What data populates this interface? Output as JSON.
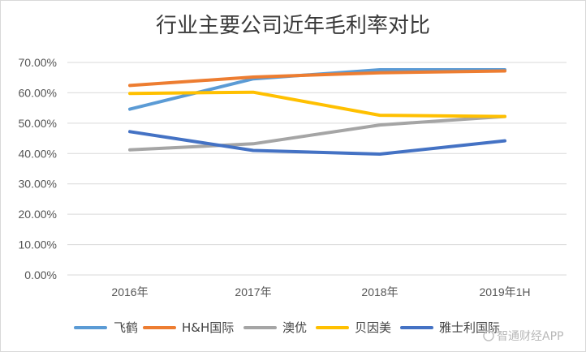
{
  "chart_data": {
    "type": "line",
    "title": "行业主要公司近年毛利率对比",
    "categories": [
      "2016年",
      "2017年",
      "2018年",
      "2019年1H"
    ],
    "ylim": [
      0,
      70
    ],
    "yticks": [
      0,
      10,
      20,
      30,
      40,
      50,
      60,
      70
    ],
    "ytick_labels": [
      "0.00%",
      "10.00%",
      "20.00%",
      "30.00%",
      "40.00%",
      "50.00%",
      "60.00%",
      "70.00%"
    ],
    "grid": true,
    "legend_position": "bottom",
    "series": [
      {
        "name": "飞鹤",
        "color": "#5b9bd5",
        "values": [
          54.6,
          64.6,
          67.6,
          67.6
        ]
      },
      {
        "name": "H&H国际",
        "color": "#ed7d31",
        "values": [
          62.4,
          65.2,
          66.6,
          67.2
        ]
      },
      {
        "name": "澳优",
        "color": "#a5a5a5",
        "values": [
          41.2,
          43.2,
          49.4,
          52.2
        ]
      },
      {
        "name": "贝因美",
        "color": "#ffc000",
        "values": [
          59.8,
          60.2,
          52.6,
          52.2
        ]
      },
      {
        "name": "雅士利国际",
        "color": "#4472c4",
        "values": [
          47.2,
          41.0,
          39.8,
          44.2
        ]
      }
    ]
  },
  "watermark": "智通财经APP"
}
